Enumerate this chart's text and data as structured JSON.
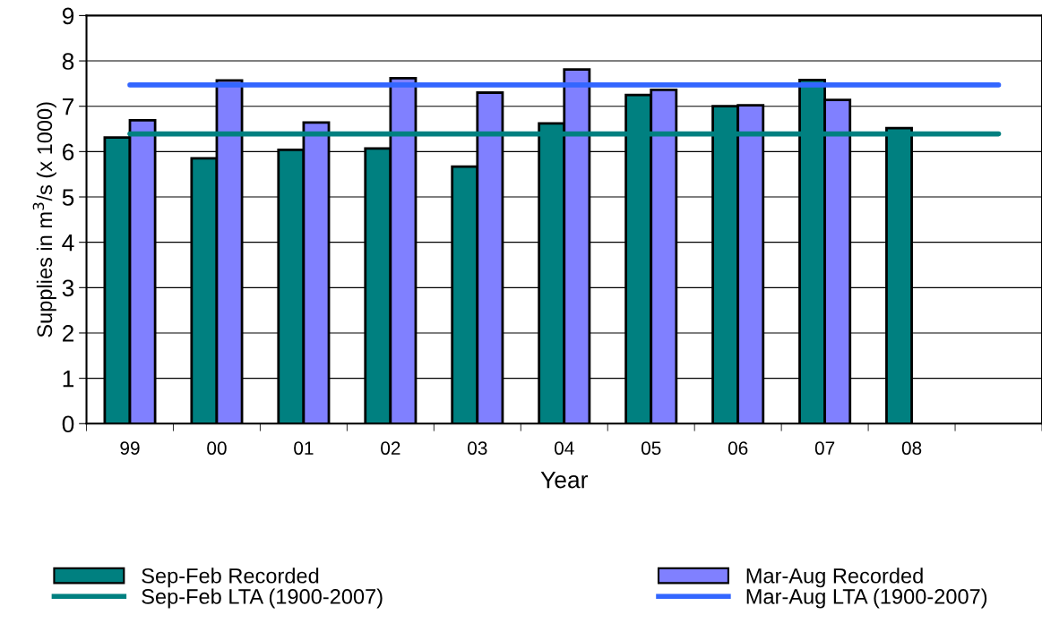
{
  "chart_data": {
    "type": "bar",
    "xlabel": "Year",
    "ylabel": "Supplies in m$^{3}$/s (x 1000)",
    "categories": [
      "99",
      "00",
      "01",
      "02",
      "03",
      "04",
      "05",
      "06",
      "07",
      "08",
      null
    ],
    "series": [
      {
        "name": "Sep-Feb Recorded",
        "color": "#008080",
        "values": [
          6.31,
          5.85,
          6.04,
          6.07,
          5.67,
          6.62,
          7.25,
          7.0,
          7.58,
          6.52,
          null
        ]
      },
      {
        "name": "Mar-Aug Recorded",
        "color": "#8080ff",
        "values": [
          6.69,
          7.57,
          6.64,
          7.62,
          7.3,
          7.81,
          7.36,
          7.02,
          7.14,
          null,
          null
        ]
      },
      {
        "name": "Sep-Feb LTA (1900-2007)",
        "type": "line",
        "color": "#008080",
        "values": [
          6.39,
          6.39,
          6.39,
          6.39,
          6.39,
          6.39,
          6.39,
          6.39,
          6.39,
          6.39,
          6.39
        ]
      },
      {
        "name": "Mar-Aug LTA (1900-2007)",
        "type": "line",
        "color": "#3366ff",
        "values": [
          7.47,
          7.47,
          7.47,
          7.47,
          7.47,
          7.47,
          7.47,
          7.47,
          7.47,
          7.47,
          7.47
        ]
      }
    ],
    "ylim": [
      0,
      9
    ],
    "yticks": [
      0,
      1,
      2,
      3,
      4,
      5,
      6,
      7,
      8,
      9
    ],
    "grid": "y",
    "legend": "bottom",
    "marker": "none",
    "line_style": "solid"
  }
}
